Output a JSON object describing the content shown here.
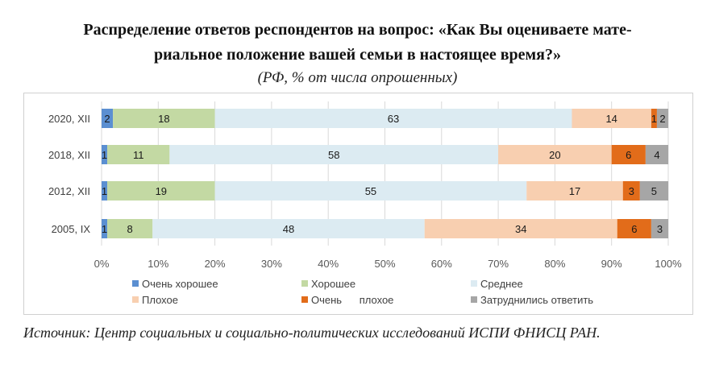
{
  "title_line1": "Распределение ответов респондентов на вопрос: «Как Вы оцениваете мате-",
  "title_line2": "риальное положение вашей семьи в настоящее время?»",
  "subtitle": "(РФ, % от числа опрошенных)",
  "source": "Источник: Центр социальных и социально-политических исследований ИСПИ ФНИСЦ РАН.",
  "chart_data": {
    "type": "bar",
    "orientation": "horizontal",
    "stacked": "percent",
    "categories": [
      "2020, XII",
      "2018, XII",
      "2012, XII",
      "2005, IX"
    ],
    "series": [
      {
        "name": "Очень хорошее",
        "values": [
          2,
          1,
          1,
          1
        ],
        "color": "#5b8fd1",
        "label_color": "#1a1a1a"
      },
      {
        "name": "Хорошее",
        "values": [
          18,
          11,
          19,
          8
        ],
        "color": "#c3d9a3",
        "label_color": "#1a1a1a"
      },
      {
        "name": "Среднее",
        "values": [
          63,
          58,
          55,
          48
        ],
        "color": "#dcebf2",
        "label_color": "#1a1a1a"
      },
      {
        "name": "Плохое",
        "values": [
          14,
          20,
          17,
          34
        ],
        "color": "#f8cfb0",
        "label_color": "#1a1a1a"
      },
      {
        "name": "Очень      плохое",
        "values": [
          1,
          6,
          3,
          6
        ],
        "color": "#e26c1a",
        "label_color": "#1a1a1a"
      },
      {
        "name": "Затруднились ответить",
        "values": [
          2,
          4,
          5,
          3
        ],
        "color": "#a6a6a6",
        "label_color": "#1a1a1a"
      }
    ],
    "x_ticks": [
      "0%",
      "10%",
      "20%",
      "30%",
      "40%",
      "50%",
      "60%",
      "70%",
      "80%",
      "90%",
      "100%"
    ],
    "xlim": [
      0,
      100
    ],
    "grid": true,
    "legend": "bottom"
  }
}
